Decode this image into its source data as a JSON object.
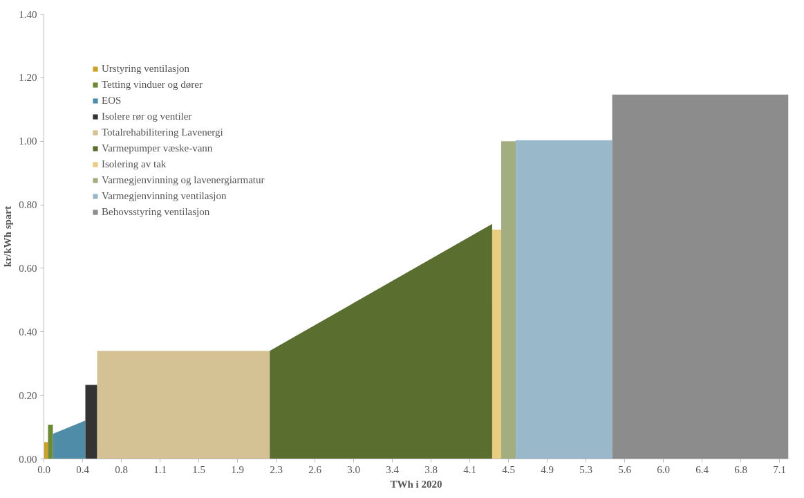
{
  "chart_data": {
    "type": "area",
    "xlabel": "TWh i 2020",
    "ylabel": "kr/kWh spart",
    "xlim": [
      0,
      7.22
    ],
    "ylim": [
      0,
      1.4
    ],
    "xticks": [
      {
        "value": 0,
        "label": "0.0"
      },
      {
        "value": 0.3755,
        "label": "0.4"
      },
      {
        "value": 0.751,
        "label": "0.8"
      },
      {
        "value": 1.1265,
        "label": "1.1"
      },
      {
        "value": 1.502,
        "label": "1.5"
      },
      {
        "value": 1.8775,
        "label": "1.9"
      },
      {
        "value": 2.253,
        "label": "2.3"
      },
      {
        "value": 2.6285,
        "label": "2.6"
      },
      {
        "value": 3.004,
        "label": "3.0"
      },
      {
        "value": 3.3795,
        "label": "3.4"
      },
      {
        "value": 3.755,
        "label": "3.8"
      },
      {
        "value": 4.1305,
        "label": "4.1"
      },
      {
        "value": 4.506,
        "label": "4.5"
      },
      {
        "value": 4.8815,
        "label": "4.9"
      },
      {
        "value": 5.257,
        "label": "5.3"
      },
      {
        "value": 5.6325,
        "label": "5.6"
      },
      {
        "value": 6.008,
        "label": "6.0"
      },
      {
        "value": 6.3835,
        "label": "6.4"
      },
      {
        "value": 6.759,
        "label": "6.8"
      },
      {
        "value": 7.1345,
        "label": "7.1"
      }
    ],
    "yticks": [
      {
        "value": 0,
        "label": "0.00"
      },
      {
        "value": 0.2,
        "label": "0.20"
      },
      {
        "value": 0.4,
        "label": "0.40"
      },
      {
        "value": 0.6,
        "label": "0.60"
      },
      {
        "value": 0.8,
        "label": "0.80"
      },
      {
        "value": 1.0,
        "label": "1.00"
      },
      {
        "value": 1.2,
        "label": "1.20"
      },
      {
        "value": 1.4,
        "label": "1.40"
      }
    ],
    "grid": false,
    "legend": "top left",
    "series": [
      {
        "name": "Urstyring ventilasjon",
        "color": "#c9a227",
        "x": [
          0,
          0.04
        ],
        "values": [
          0.053,
          0.053
        ]
      },
      {
        "name": "Tetting vinduer og dører",
        "color": "#6b8a33",
        "x": [
          0.04,
          0.087
        ],
        "values": [
          0.108,
          0.108
        ]
      },
      {
        "name": "EOS",
        "color": "#4f8ca8",
        "x": [
          0.087,
          0.402
        ],
        "values": [
          0.079,
          0.121
        ]
      },
      {
        "name": "Isolere rør og ventiler",
        "color": "#333333",
        "x": [
          0.402,
          0.517
        ],
        "values": [
          0.233,
          0.233
        ]
      },
      {
        "name": "Totalrehabilitering Lavenergi",
        "color": "#d4c194",
        "x": [
          0.517,
          2.19
        ],
        "values": [
          0.34,
          0.34
        ]
      },
      {
        "name": "Varmepumper væske-vann",
        "color": "#5a6e30",
        "x": [
          2.19,
          4.347
        ],
        "values": [
          0.34,
          0.74
        ]
      },
      {
        "name": "Isolering av tak",
        "color": "#e8cc84",
        "x": [
          4.347,
          4.434
        ],
        "values": [
          0.722,
          0.722
        ]
      },
      {
        "name": "Varmegjenvinning og lavenergiarmatur",
        "color": "#a2ae80",
        "x": [
          4.434,
          4.576
        ],
        "values": [
          1.0,
          1.0
        ]
      },
      {
        "name": "Varmegjenvinning ventilasjon",
        "color": "#99b9cb",
        "x": [
          4.576,
          5.511
        ],
        "values": [
          1.003,
          1.003
        ]
      },
      {
        "name": "Behovsstyring ventilasjon",
        "color": "#8c8c8c",
        "x": [
          5.511,
          7.22
        ],
        "values": [
          1.147,
          1.147
        ]
      }
    ]
  }
}
